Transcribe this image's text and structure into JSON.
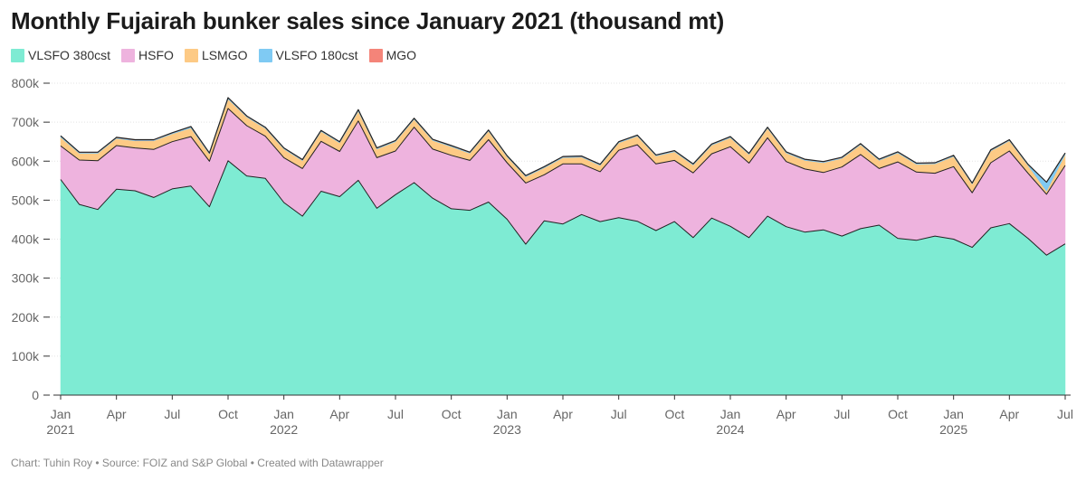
{
  "chart_data": {
    "type": "area",
    "stacked": true,
    "title": "Monthly Fujairah bunker sales since January 2021 (thousand mt)",
    "x_start": "2021-01",
    "x_end": "2025-07",
    "x_ticks": [
      {
        "date": "2021-01",
        "label": "Jan",
        "year": "2021"
      },
      {
        "date": "2021-04",
        "label": "Apr",
        "year": ""
      },
      {
        "date": "2021-07",
        "label": "Jul",
        "year": ""
      },
      {
        "date": "2021-10",
        "label": "Oct",
        "year": ""
      },
      {
        "date": "2022-01",
        "label": "Jan",
        "year": "2022"
      },
      {
        "date": "2022-04",
        "label": "Apr",
        "year": ""
      },
      {
        "date": "2022-07",
        "label": "Jul",
        "year": ""
      },
      {
        "date": "2022-10",
        "label": "Oct",
        "year": ""
      },
      {
        "date": "2023-01",
        "label": "Jan",
        "year": "2023"
      },
      {
        "date": "2023-04",
        "label": "Apr",
        "year": ""
      },
      {
        "date": "2023-07",
        "label": "Jul",
        "year": ""
      },
      {
        "date": "2023-10",
        "label": "Oct",
        "year": ""
      },
      {
        "date": "2024-01",
        "label": "Jan",
        "year": "2024"
      },
      {
        "date": "2024-04",
        "label": "Apr",
        "year": ""
      },
      {
        "date": "2024-07",
        "label": "Jul",
        "year": ""
      },
      {
        "date": "2024-10",
        "label": "Oct",
        "year": ""
      },
      {
        "date": "2025-01",
        "label": "Jan",
        "year": "2025"
      },
      {
        "date": "2025-04",
        "label": "Apr",
        "year": ""
      },
      {
        "date": "2025-07",
        "label": "Jul",
        "year": ""
      }
    ],
    "y_ticks": [
      {
        "value": 0,
        "label": "0"
      },
      {
        "value": 100,
        "label": "100k"
      },
      {
        "value": 200,
        "label": "200k"
      },
      {
        "value": 300,
        "label": "300k"
      },
      {
        "value": 400,
        "label": "400k"
      },
      {
        "value": 500,
        "label": "500k"
      },
      {
        "value": 600,
        "label": "600k"
      },
      {
        "value": 700,
        "label": "700k"
      },
      {
        "value": 800,
        "label": "800k"
      }
    ],
    "ylim": [
      0,
      800
    ],
    "legend_position": "top-left",
    "series": [
      {
        "name": "VLSFO 380cst",
        "color": "#7eebd3",
        "values": [
          553,
          489,
          476,
          528,
          524,
          507,
          529,
          536,
          483,
          601,
          562,
          556,
          494,
          459,
          523,
          509,
          551,
          479,
          514,
          545,
          505,
          478,
          474,
          495,
          451,
          387,
          447,
          439,
          463,
          445,
          455,
          446,
          422,
          445,
          404,
          454,
          433,
          404,
          459,
          432,
          418,
          424,
          408,
          427,
          436,
          402,
          397,
          408,
          400,
          379,
          429,
          440,
          402,
          359,
          388
        ]
      },
      {
        "name": "HSFO",
        "color": "#eeb3de",
        "values": [
          86,
          114,
          125,
          112,
          110,
          123,
          121,
          127,
          117,
          134,
          129,
          108,
          115,
          122,
          128,
          116,
          152,
          130,
          112,
          142,
          126,
          137,
          128,
          160,
          145,
          157,
          118,
          154,
          130,
          128,
          173,
          196,
          171,
          157,
          166,
          165,
          204,
          191,
          201,
          167,
          162,
          147,
          177,
          190,
          145,
          196,
          175,
          161,
          186,
          140,
          167,
          186,
          167,
          156,
          201
        ]
      },
      {
        "name": "LSMGO",
        "color": "#fdca85",
        "values": [
          22,
          17,
          19,
          18,
          18,
          22,
          20,
          22,
          18,
          24,
          22,
          20,
          22,
          20,
          25,
          22,
          25,
          22,
          24,
          20,
          22,
          22,
          18,
          22,
          15,
          16,
          18,
          16,
          17,
          16,
          19,
          22,
          20,
          22,
          20,
          22,
          23,
          22,
          24,
          22,
          22,
          25,
          22,
          25,
          21,
          23,
          20,
          24,
          26,
          22,
          30,
          26,
          20,
          8,
          28
        ]
      },
      {
        "name": "VLSFO 180cst",
        "color": "#7fcaf3",
        "values": [
          3,
          2,
          2,
          2,
          2,
          2,
          2,
          3,
          2,
          3,
          2,
          2,
          2,
          2,
          2,
          2,
          3,
          2,
          2,
          2,
          2,
          2,
          2,
          2,
          2,
          2,
          2,
          2,
          2,
          2,
          2,
          2,
          2,
          2,
          2,
          2,
          2,
          2,
          2,
          2,
          2,
          2,
          2,
          2,
          2,
          2,
          2,
          2,
          2,
          2,
          2,
          2,
          2,
          22,
          3
        ]
      },
      {
        "name": "MGO",
        "color": "#f48479",
        "values": [
          1,
          1,
          1,
          1,
          1,
          1,
          1,
          1,
          1,
          1,
          1,
          1,
          1,
          1,
          1,
          1,
          1,
          1,
          1,
          1,
          1,
          1,
          1,
          1,
          1,
          1,
          1,
          1,
          1,
          1,
          1,
          1,
          1,
          1,
          1,
          1,
          1,
          1,
          1,
          1,
          1,
          1,
          1,
          1,
          1,
          1,
          1,
          1,
          1,
          1,
          1,
          1,
          1,
          1,
          1
        ]
      }
    ]
  },
  "footer": {
    "credit": "Chart: Tuhin Roy • Source: FOIZ and S&P Global • Created with Datawrapper"
  }
}
